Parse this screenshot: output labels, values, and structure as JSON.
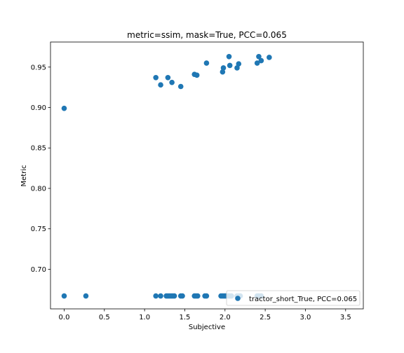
{
  "chart_data": {
    "type": "scatter",
    "title": "metric=ssim, mask=True, PCC=0.065",
    "xlabel": "Subjective",
    "ylabel": "Metric",
    "xlim": [
      -0.17,
      3.72
    ],
    "ylim": [
      0.651,
      0.981
    ],
    "xticks": [
      0.0,
      0.5,
      1.0,
      1.5,
      2.0,
      2.5,
      3.0,
      3.5
    ],
    "xtick_labels": [
      "0.0",
      "0.5",
      "1.0",
      "1.5",
      "2.0",
      "2.5",
      "3.0",
      "3.5"
    ],
    "yticks": [
      0.7,
      0.75,
      0.8,
      0.85,
      0.9,
      0.95
    ],
    "ytick_labels": [
      "0.70",
      "0.75",
      "0.80",
      "0.85",
      "0.90",
      "0.95"
    ],
    "grid": false,
    "legend_position": "lower-right",
    "colors": {
      "series": "#1f77b4"
    },
    "series": [
      {
        "name": "tractor_short_True, PCC=0.065",
        "x": [
          0.0,
          1.14,
          1.2,
          1.29,
          1.34,
          1.45,
          1.62,
          1.65,
          1.77,
          1.97,
          1.98,
          2.05,
          2.06,
          2.15,
          2.17,
          2.4,
          2.42,
          2.45,
          2.55,
          0.0,
          0.27,
          1.14,
          1.2,
          1.27,
          1.29,
          1.31,
          1.33,
          1.35,
          1.37,
          1.45,
          1.47,
          1.62,
          1.64,
          1.66,
          1.75,
          1.77,
          1.95,
          1.97,
          1.99,
          2.01,
          2.04,
          2.06,
          2.08,
          2.15,
          2.17,
          2.19,
          2.4,
          2.42,
          2.45
        ],
        "y": [
          0.899,
          0.937,
          0.928,
          0.937,
          0.931,
          0.926,
          0.941,
          0.94,
          0.955,
          0.944,
          0.949,
          0.963,
          0.952,
          0.949,
          0.954,
          0.955,
          0.963,
          0.958,
          0.962,
          0.667,
          0.667,
          0.667,
          0.667,
          0.667,
          0.667,
          0.667,
          0.667,
          0.667,
          0.667,
          0.667,
          0.667,
          0.667,
          0.667,
          0.667,
          0.667,
          0.667,
          0.667,
          0.667,
          0.667,
          0.667,
          0.667,
          0.667,
          0.667,
          0.667,
          0.667,
          0.667,
          0.667,
          0.667,
          0.667
        ]
      }
    ]
  }
}
